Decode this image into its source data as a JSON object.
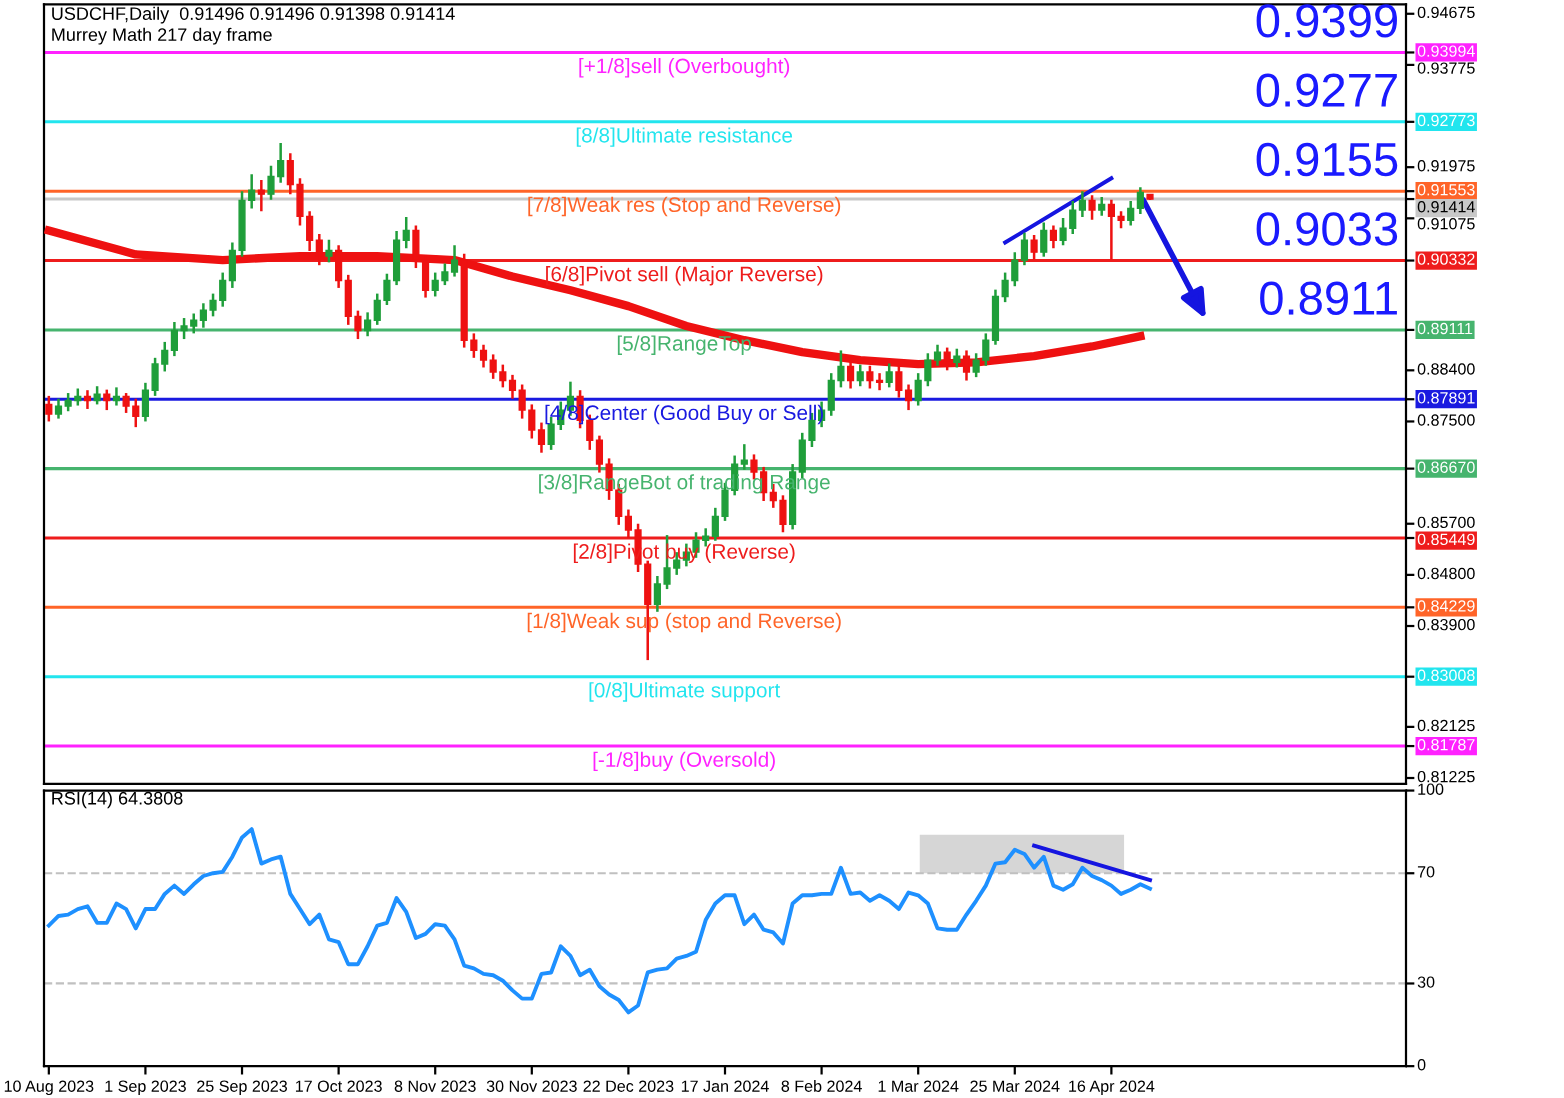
{
  "chart_data": [
    {
      "type": "candlestick",
      "title": "USDCHF,Daily  0.91496 0.91496 0.91398 0.91414",
      "subtitle": "Murrey Math 217 day frame",
      "categories": [
        null,
        null,
        null,
        null,
        null,
        null,
        null,
        null,
        null,
        null,
        null,
        null,
        null,
        null,
        null,
        null,
        null,
        null,
        null,
        null,
        null,
        null,
        null,
        null,
        null,
        null,
        null,
        null,
        null,
        null,
        null,
        null,
        null,
        null,
        null,
        null,
        null,
        null,
        null,
        null,
        null,
        null,
        null,
        null,
        null,
        null,
        null,
        null,
        null,
        null,
        null,
        null,
        null,
        null,
        null,
        null,
        null,
        null,
        null,
        null,
        null,
        null,
        null,
        null,
        null,
        null,
        null,
        null,
        null,
        null,
        null,
        null,
        null,
        null,
        null,
        null,
        null,
        null,
        null,
        null,
        null,
        null,
        null,
        null,
        null,
        null,
        null,
        null,
        null,
        null,
        null,
        null,
        null,
        null,
        null,
        null,
        null,
        null,
        null,
        null,
        null,
        null,
        null,
        null,
        null,
        null,
        null,
        null,
        null,
        null,
        null,
        null,
        null,
        null,
        null,
        null,
        null,
        null,
        null,
        null,
        null,
        null,
        null,
        null,
        null,
        null,
        null,
        null,
        null,
        null,
        null,
        null,
        null,
        null,
        null,
        null,
        null,
        null,
        null,
        null,
        null
      ],
      "ohlc": [
        [
          0.878,
          0.8795,
          0.875,
          0.8763
        ],
        [
          0.8763,
          0.879,
          0.8755,
          0.8777
        ],
        [
          0.8777,
          0.88,
          0.8768,
          0.8787
        ],
        [
          0.8787,
          0.8808,
          0.8778,
          0.8794
        ],
        [
          0.8794,
          0.8805,
          0.8772,
          0.8787
        ],
        [
          0.8787,
          0.8812,
          0.878,
          0.8798
        ],
        [
          0.8798,
          0.8806,
          0.877,
          0.8787
        ],
        [
          0.8787,
          0.881,
          0.8778,
          0.8794
        ],
        [
          0.8794,
          0.88,
          0.8765,
          0.8777
        ],
        [
          0.8777,
          0.879,
          0.874,
          0.8759
        ],
        [
          0.8759,
          0.8818,
          0.875,
          0.8805
        ],
        [
          0.8805,
          0.8862,
          0.8795,
          0.8851
        ],
        [
          0.8851,
          0.889,
          0.8838,
          0.8875
        ],
        [
          0.8875,
          0.8925,
          0.8865,
          0.891
        ],
        [
          0.891,
          0.8932,
          0.8895,
          0.8918
        ],
        [
          0.8918,
          0.894,
          0.8905,
          0.8928
        ],
        [
          0.8928,
          0.8958,
          0.8915,
          0.8946
        ],
        [
          0.8946,
          0.8975,
          0.8935,
          0.8963
        ],
        [
          0.8963,
          0.9012,
          0.8952,
          0.8998
        ],
        [
          0.8998,
          0.9065,
          0.8985,
          0.9051
        ],
        [
          0.9051,
          0.9155,
          0.904,
          0.9139
        ],
        [
          0.9139,
          0.9185,
          0.9125,
          0.9157
        ],
        [
          0.9157,
          0.9175,
          0.912,
          0.915
        ],
        [
          0.915,
          0.92,
          0.914,
          0.9181
        ],
        [
          0.9181,
          0.924,
          0.917,
          0.9209
        ],
        [
          0.9209,
          0.9222,
          0.915,
          0.9167
        ],
        [
          0.9167,
          0.9178,
          0.9095,
          0.9111
        ],
        [
          0.9111,
          0.912,
          0.905,
          0.9069
        ],
        [
          0.9069,
          0.908,
          0.9025,
          0.9041
        ],
        [
          0.9041,
          0.907,
          0.903,
          0.9051
        ],
        [
          0.9051,
          0.906,
          0.8985,
          0.8998
        ],
        [
          0.8998,
          0.9008,
          0.892,
          0.8935
        ],
        [
          0.8935,
          0.8945,
          0.8895,
          0.891
        ],
        [
          0.891,
          0.8942,
          0.89,
          0.8928
        ],
        [
          0.8928,
          0.8975,
          0.892,
          0.8963
        ],
        [
          0.8963,
          0.901,
          0.8955,
          0.8998
        ],
        [
          0.8998,
          0.9085,
          0.899,
          0.9069
        ],
        [
          0.9069,
          0.911,
          0.9055,
          0.9086
        ],
        [
          0.9086,
          0.9095,
          0.902,
          0.9034
        ],
        [
          0.9034,
          0.9042,
          0.8968,
          0.8981
        ],
        [
          0.8981,
          0.9012,
          0.897,
          0.8998
        ],
        [
          0.8998,
          0.9028,
          0.899,
          0.9013
        ],
        [
          0.9013,
          0.906,
          0.9005,
          0.9034
        ],
        [
          0.9034,
          0.9045,
          0.888,
          0.8893
        ],
        [
          0.8893,
          0.8905,
          0.8862,
          0.8875
        ],
        [
          0.8875,
          0.8885,
          0.8845,
          0.8858
        ],
        [
          0.8858,
          0.8868,
          0.8825,
          0.8837
        ],
        [
          0.8837,
          0.885,
          0.881,
          0.8822
        ],
        [
          0.8822,
          0.8832,
          0.879,
          0.8805
        ],
        [
          0.8805,
          0.8815,
          0.8755,
          0.877
        ],
        [
          0.877,
          0.878,
          0.872,
          0.8735
        ],
        [
          0.8735,
          0.8748,
          0.8695,
          0.871
        ],
        [
          0.871,
          0.8758,
          0.87,
          0.8745
        ],
        [
          0.8745,
          0.8785,
          0.8735,
          0.877
        ],
        [
          0.877,
          0.882,
          0.876,
          0.8794
        ],
        [
          0.8794,
          0.8805,
          0.8738,
          0.8752
        ],
        [
          0.8752,
          0.8762,
          0.87,
          0.8717
        ],
        [
          0.8717,
          0.8725,
          0.866,
          0.8675
        ],
        [
          0.8675,
          0.8685,
          0.8612,
          0.8629
        ],
        [
          0.8629,
          0.864,
          0.8568,
          0.8583
        ],
        [
          0.8583,
          0.8595,
          0.8545,
          0.8559
        ],
        [
          0.8559,
          0.857,
          0.8485,
          0.8499
        ],
        [
          0.8499,
          0.8505,
          0.833,
          0.8428
        ],
        [
          0.8428,
          0.8478,
          0.8415,
          0.8464
        ],
        [
          0.8464,
          0.855,
          0.8455,
          0.8492
        ],
        [
          0.8492,
          0.852,
          0.848,
          0.8506
        ],
        [
          0.8506,
          0.8535,
          0.8495,
          0.852
        ],
        [
          0.852,
          0.8555,
          0.851,
          0.8541
        ],
        [
          0.8541,
          0.8562,
          0.853,
          0.8548
        ],
        [
          0.8548,
          0.8598,
          0.854,
          0.8583
        ],
        [
          0.8583,
          0.8642,
          0.8575,
          0.8629
        ],
        [
          0.8629,
          0.869,
          0.862,
          0.8675
        ],
        [
          0.8675,
          0.871,
          0.8665,
          0.8682
        ],
        [
          0.8682,
          0.8692,
          0.8648,
          0.8661
        ],
        [
          0.8661,
          0.867,
          0.861,
          0.8625
        ],
        [
          0.8625,
          0.864,
          0.8598,
          0.8611
        ],
        [
          0.8611,
          0.862,
          0.8555,
          0.8569
        ],
        [
          0.8569,
          0.8675,
          0.856,
          0.8661
        ],
        [
          0.8661,
          0.873,
          0.865,
          0.8717
        ],
        [
          0.8717,
          0.8765,
          0.8705,
          0.8752
        ],
        [
          0.8752,
          0.8785,
          0.874,
          0.877
        ],
        [
          0.877,
          0.8835,
          0.876,
          0.8822
        ],
        [
          0.8822,
          0.8875,
          0.881,
          0.8847
        ],
        [
          0.8847,
          0.8858,
          0.8808,
          0.8822
        ],
        [
          0.8822,
          0.885,
          0.8812,
          0.8837
        ],
        [
          0.8837,
          0.8848,
          0.8808,
          0.8822
        ],
        [
          0.8822,
          0.8835,
          0.8805,
          0.8819
        ],
        [
          0.8819,
          0.8852,
          0.881,
          0.8837
        ],
        [
          0.8837,
          0.8848,
          0.8792,
          0.8805
        ],
        [
          0.8805,
          0.8815,
          0.877,
          0.8787
        ],
        [
          0.8787,
          0.8835,
          0.8778,
          0.8822
        ],
        [
          0.8822,
          0.887,
          0.8812,
          0.8858
        ],
        [
          0.8858,
          0.8885,
          0.8848,
          0.8872
        ],
        [
          0.8872,
          0.888,
          0.884,
          0.8854
        ],
        [
          0.8854,
          0.8878,
          0.8845,
          0.8865
        ],
        [
          0.8865,
          0.8875,
          0.8822,
          0.8837
        ],
        [
          0.8837,
          0.887,
          0.8828,
          0.8858
        ],
        [
          0.8858,
          0.8905,
          0.8848,
          0.8893
        ],
        [
          0.8893,
          0.8982,
          0.8885,
          0.897
        ],
        [
          0.897,
          0.9012,
          0.896,
          0.8998
        ],
        [
          0.8998,
          0.9048,
          0.8988,
          0.9034
        ],
        [
          0.9034,
          0.9082,
          0.9025,
          0.9069
        ],
        [
          0.9069,
          0.9078,
          0.9035,
          0.9048
        ],
        [
          0.9048,
          0.91,
          0.904,
          0.9086
        ],
        [
          0.9086,
          0.9095,
          0.9055,
          0.9069
        ],
        [
          0.9069,
          0.9108,
          0.906,
          0.909
        ],
        [
          0.909,
          0.9138,
          0.908,
          0.9122
        ],
        [
          0.9122,
          0.9155,
          0.911,
          0.9139
        ],
        [
          0.9139,
          0.9148,
          0.9105,
          0.9122
        ],
        [
          0.9122,
          0.9145,
          0.9112,
          0.9132
        ],
        [
          0.9132,
          0.914,
          0.9035,
          0.9111
        ],
        [
          0.9111,
          0.912,
          0.909,
          0.9104
        ],
        [
          0.9104,
          0.9138,
          0.9095,
          0.9125
        ],
        [
          0.9125,
          0.9162,
          0.9115,
          0.9153
        ],
        [
          0.91496,
          0.91496,
          0.91398,
          0.91414
        ],
        null,
        null,
        null,
        null,
        null,
        null,
        null,
        null,
        null,
        null,
        null,
        null,
        null,
        null,
        null,
        null,
        null,
        null,
        null,
        null,
        null,
        null,
        null,
        null,
        null,
        null
      ],
      "series": [
        {
          "type": "line",
          "color": "#ee1111",
          "values": [
            0.9086,
            null,
            null,
            null,
            null,
            null,
            null,
            null,
            null,
            0.9044,
            null,
            null,
            null,
            null,
            null,
            null,
            null,
            null,
            0.9034,
            null,
            null,
            null,
            null,
            null,
            null,
            null,
            0.9041,
            null,
            null,
            null,
            null,
            null,
            null,
            null,
            0.9041,
            null,
            null,
            null,
            null,
            null,
            null,
            null,
            0.9034,
            null,
            null,
            null,
            null,
            null,
            0.9005,
            null,
            null,
            null,
            null,
            null,
            0.8981,
            null,
            null,
            null,
            null,
            null,
            0.8953,
            null,
            null,
            null,
            null,
            null,
            0.8918,
            null,
            null,
            null,
            null,
            null,
            0.8893,
            null,
            null,
            null,
            null,
            null,
            0.8872,
            null,
            null,
            null,
            null,
            null,
            0.8858,
            null,
            null,
            null,
            null,
            null,
            0.8851,
            null,
            null,
            null,
            null,
            null,
            0.8854,
            null,
            null,
            null,
            null,
            null,
            0.8865,
            null,
            null,
            null,
            null,
            null,
            0.8882,
            null,
            null,
            null,
            null,
            0.89,
            null,
            null,
            null,
            null,
            null,
            null,
            null,
            null,
            null,
            null,
            null,
            null,
            null,
            null,
            null,
            null,
            null,
            null,
            null,
            null,
            null,
            null,
            null,
            null,
            null,
            null,
            null
          ]
        },
        {
          "type": "line",
          "color": "#1515e0",
          "values": [
            null,
            null,
            null,
            null,
            null,
            null,
            null,
            null,
            null,
            null,
            null,
            null,
            null,
            null,
            null,
            null,
            null,
            null,
            null,
            null,
            null,
            null,
            null,
            null,
            null,
            null,
            null,
            null,
            null,
            null,
            null,
            null,
            null,
            null,
            null,
            null,
            null,
            null,
            null,
            null,
            null,
            null,
            null,
            null,
            null,
            null,
            null,
            null,
            null,
            null,
            null,
            null,
            null,
            null,
            null,
            null,
            null,
            null,
            null,
            null,
            null,
            null,
            null,
            null,
            null,
            null,
            null,
            null,
            null,
            null,
            null,
            null,
            null,
            null,
            null,
            null,
            null,
            null,
            null,
            null,
            null,
            null,
            null,
            null,
            null,
            null,
            null,
            null,
            null,
            null,
            null,
            null,
            null,
            null,
            null,
            null,
            null,
            null,
            null,
            0.9065,
            null,
            null,
            null,
            null,
            null,
            null,
            null,
            null,
            null,
            null,
            0.9178,
            null,
            null,
            null,
            null,
            null,
            null,
            null,
            null,
            null,
            null,
            null,
            null,
            null,
            null,
            null,
            null,
            null,
            null,
            null,
            null,
            null,
            null,
            null,
            null,
            null,
            null,
            null,
            null,
            null,
            null
          ]
        }
      ],
      "ref_lines": [
        {
          "axis": "y",
          "value": 0.93994,
          "label": "[+1/8]sell (Overbought)",
          "color": "#ff22ff",
          "line_style": "solid"
        },
        {
          "axis": "y",
          "value": 0.92773,
          "label": "[8/8]Ultimate resistance",
          "color": "#22e5ee",
          "line_style": "solid"
        },
        {
          "axis": "y",
          "value": 0.91553,
          "label": "[7/8]Weak res (Stop and Reverse)",
          "color": "#ff6428",
          "line_style": "solid"
        },
        {
          "axis": "y",
          "value": 0.91414,
          "label": null,
          "color": "#c8c8c8",
          "line_style": "solid"
        },
        {
          "axis": "y",
          "value": 0.90332,
          "label": "[6/8]Pivot sell (Major Reverse)",
          "color": "#ee1c1c",
          "line_style": "solid"
        },
        {
          "axis": "y",
          "value": 0.89111,
          "label": "[5/8]RangeTop",
          "color": "#46b46e",
          "line_style": "solid"
        },
        {
          "axis": "y",
          "value": 0.87891,
          "label": "[4/8]Center (Good Buy or Sell)",
          "color": "#1a1ae0",
          "line_style": "solid"
        },
        {
          "axis": "y",
          "value": 0.8667,
          "label": "[3/8]RangeBot of trading Range",
          "color": "#46b46e",
          "line_style": "solid"
        },
        {
          "axis": "y",
          "value": 0.85449,
          "label": "[2/8]Pivot buy (Reverse)",
          "color": "#ee1c1c",
          "line_style": "solid"
        },
        {
          "axis": "y",
          "value": 0.84229,
          "label": "[1/8]Weak sup (stop and Reverse)",
          "color": "#ff6428",
          "line_style": "solid"
        },
        {
          "axis": "y",
          "value": 0.83008,
          "label": "[0/8]Ultimate support",
          "color": "#22e5ee",
          "line_style": "solid"
        },
        {
          "axis": "y",
          "value": 0.81787,
          "label": "[-1/8]buy (Oversold)",
          "color": "#ff22ff",
          "line_style": "solid"
        }
      ],
      "annotations": [
        {
          "text": "0.9399",
          "y": 0.93994
        },
        {
          "text": "0.9277",
          "y": 0.92773
        },
        {
          "text": "0.9155",
          "y": 0.91553
        },
        {
          "text": "0.9033",
          "y": 0.90332
        },
        {
          "text": "0.8911",
          "y": 0.89111
        }
      ],
      "ylim": [
        0.8112,
        0.9484
      ],
      "yticks": [
        0.94675,
        {
          "value": 0.93994,
          "label": "0.93994"
        },
        0.93775,
        {
          "value": 0.92773,
          "label": "0.92773"
        },
        0.91975,
        {
          "value": 0.91553,
          "label": "0.91553"
        },
        {
          "value": 0.91414,
          "label": "0.91414"
        },
        0.91075,
        {
          "value": 0.90332,
          "label": "0.90332"
        },
        {
          "value": 0.89111,
          "label": "0.89111"
        },
        {
          "value": 0.87891,
          "label": "0.87891"
        },
        {
          "value": 0.8667,
          "label": "0.86670"
        },
        {
          "value": 0.85449,
          "label": "0.85449"
        },
        {
          "value": 0.84229,
          "label": "0.84229"
        },
        {
          "value": 0.83008,
          "label": "0.83008"
        },
        {
          "value": 0.81787,
          "label": "0.81787"
        },
        {
          "value": 0.884,
          "label": "0.88400"
        },
        {
          "value": 0.875,
          "label": "0.87500"
        },
        {
          "value": 0.857,
          "label": "0.85700"
        },
        {
          "value": 0.848,
          "label": "0.84800"
        },
        {
          "value": 0.839,
          "label": "0.83900"
        },
        0.82125,
        0.81225
      ],
      "tick_labels": "y"
    },
    {
      "type": "line",
      "title": "RSI(14) 64.3808",
      "categories": [
        "10 Aug 2023",
        null,
        null,
        null,
        null,
        null,
        null,
        null,
        null,
        null,
        "1 Sep 2023",
        null,
        null,
        null,
        null,
        null,
        null,
        null,
        null,
        null,
        "25 Sep 2023",
        null,
        null,
        null,
        null,
        null,
        null,
        null,
        null,
        null,
        "17 Oct 2023",
        null,
        null,
        null,
        null,
        null,
        null,
        null,
        null,
        null,
        "8 Nov 2023",
        null,
        null,
        null,
        null,
        null,
        null,
        null,
        null,
        null,
        "30 Nov 2023",
        null,
        null,
        null,
        null,
        null,
        null,
        null,
        null,
        null,
        "22 Dec 2023",
        null,
        null,
        null,
        null,
        null,
        null,
        null,
        null,
        null,
        "17 Jan 2024",
        null,
        null,
        null,
        null,
        null,
        null,
        null,
        null,
        null,
        "8 Feb 2024",
        null,
        null,
        null,
        null,
        null,
        null,
        null,
        null,
        null,
        "1 Mar 2024",
        null,
        null,
        null,
        null,
        null,
        null,
        null,
        null,
        null,
        "25 Mar 2024",
        null,
        null,
        null,
        null,
        null,
        null,
        null,
        null,
        null,
        "16 Apr 2024",
        null,
        null,
        null,
        null,
        null,
        null,
        null,
        null,
        null,
        null,
        null,
        null,
        null,
        null,
        null,
        null,
        null,
        null,
        null,
        null,
        null,
        null,
        null,
        null,
        null,
        null,
        null,
        null,
        null,
        null
      ],
      "series": [
        {
          "color": "#1e90ff",
          "values": [
            51,
            54.5,
            55,
            57,
            58,
            52,
            52,
            59,
            57,
            50,
            57,
            57,
            62.5,
            65.5,
            62.5,
            66,
            69,
            70,
            70.5,
            76,
            83,
            86,
            73.5,
            75,
            76,
            62.5,
            57,
            51.5,
            55,
            46,
            45,
            37,
            37,
            43.5,
            51,
            52,
            61,
            56,
            46.5,
            48,
            51.5,
            51,
            46,
            36.5,
            35.5,
            33.5,
            33,
            31,
            27.5,
            24.5,
            24.5,
            33.5,
            34,
            43.5,
            40,
            33,
            35,
            29,
            26,
            24,
            19.5,
            22,
            34,
            35,
            35.5,
            39,
            40,
            41.5,
            53,
            59,
            62,
            62,
            51.5,
            55,
            49.5,
            48.5,
            44.5,
            59,
            62,
            62,
            62.5,
            62.5,
            72,
            62.5,
            63,
            60,
            62,
            60,
            57,
            63,
            62,
            59,
            50,
            49.5,
            49.5,
            55,
            60,
            65.5,
            73.5,
            74,
            78.5,
            77,
            72,
            76,
            65.5,
            64,
            66,
            72,
            69,
            67.5,
            65.5,
            62.5,
            64,
            66,
            64.4,
            null,
            null,
            null,
            null,
            null,
            null,
            null,
            null,
            null,
            null,
            null,
            null,
            null,
            null,
            null,
            null,
            null,
            null,
            null,
            null,
            null,
            null,
            null,
            null,
            null,
            null
          ]
        },
        {
          "color": "#1515e0",
          "values": [
            null,
            null,
            null,
            null,
            null,
            null,
            null,
            null,
            null,
            null,
            null,
            null,
            null,
            null,
            null,
            null,
            null,
            null,
            null,
            null,
            null,
            null,
            null,
            null,
            null,
            null,
            null,
            null,
            null,
            null,
            null,
            null,
            null,
            null,
            null,
            null,
            null,
            null,
            null,
            null,
            null,
            null,
            null,
            null,
            null,
            null,
            null,
            null,
            null,
            null,
            null,
            null,
            null,
            null,
            null,
            null,
            null,
            null,
            null,
            null,
            null,
            null,
            null,
            null,
            null,
            null,
            null,
            null,
            null,
            null,
            null,
            null,
            null,
            null,
            null,
            null,
            null,
            null,
            null,
            null,
            null,
            null,
            null,
            null,
            null,
            null,
            null,
            null,
            null,
            null,
            null,
            null,
            null,
            null,
            null,
            null,
            null,
            null,
            null,
            null,
            null,
            null,
            80,
            null,
            null,
            null,
            null,
            null,
            null,
            null,
            null,
            null,
            null,
            null,
            67.5,
            null,
            null,
            null,
            null,
            null,
            null,
            null,
            null,
            null,
            null,
            null,
            null,
            null,
            null,
            null,
            null,
            null,
            null,
            null,
            null,
            null,
            null,
            null,
            null,
            null,
            null
          ]
        }
      ],
      "ref_lines": [
        {
          "axis": "y",
          "value": 30,
          "label": null,
          "color": "#c0c0c0",
          "line_style": "dashed"
        },
        {
          "axis": "y",
          "value": 70,
          "label": null,
          "color": "#c0c0c0",
          "line_style": "dashed"
        }
      ],
      "ylim": [
        0,
        100
      ],
      "yticks": [
        0,
        30,
        70,
        100
      ]
    }
  ]
}
